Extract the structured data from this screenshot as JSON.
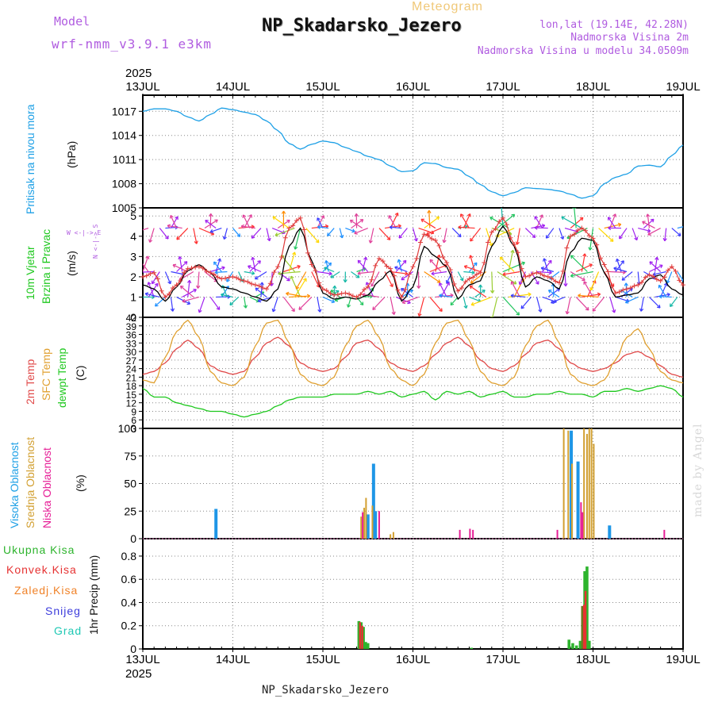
{
  "header": {
    "model_label": "Model",
    "model_value": "wrf-nmm_v3.9.1  e3km",
    "subtitle": "Meteogram",
    "title": "NP_Skadarsko_Jezero",
    "lonlat": "lon,lat (19.14E, 42.28N)",
    "elevation": "Nadmorska Visina 2m",
    "model_elevation": "Nadmorska Visina u modelu 34.0509m"
  },
  "footer_title": "NP_Skadarsko_Jezero",
  "watermark": "made by Angel",
  "time_axis": {
    "year": "2025",
    "labels": [
      "13JUL",
      "14JUL",
      "15JUL",
      "16JUL",
      "17JUL",
      "18JUL",
      "19JUL"
    ]
  },
  "colors": {
    "pressure": "#1ea0e6",
    "wind_speed": "#000000",
    "wind_gust": "#e03c3c",
    "temp2m": "#e04848",
    "sfc_temp": "#e0a030",
    "dewpoint": "#1ec81e",
    "cloud_high": "#1e96e6",
    "cloud_mid": "#d2a032",
    "cloud_low": "#e61e96",
    "precip_total": "#2db42d",
    "precip_conv": "#e63232",
    "precip_large": "#f08228",
    "snow": "#3c3cdc",
    "hail": "#1ec8b4"
  },
  "panel_labels": {
    "pressure": {
      "title": "Pritisak na nivou mora",
      "unit": "(hPa)"
    },
    "wind": {
      "title1": "10m Vjetar",
      "title2": "Brzina i Pravac",
      "unit": "(m/s)",
      "compass_ns": "N <-|-> S",
      "compass_we": "W <-|-> E"
    },
    "temp": {
      "title1": "2m Temp",
      "title2": "SFC Temp",
      "title3": "dewpt Temp",
      "unit": "(C)"
    },
    "cloud": {
      "title1": "Visoka Oblacnost",
      "title2": "Srednja Oblacnost",
      "title3": "Niska Oblacnost",
      "unit": "(%)"
    },
    "precip": {
      "legend": [
        "Ukupna Kisa",
        "Konvek.Kisa",
        "Zaledj.Kisa",
        "Snijeg",
        "Grad"
      ],
      "unit": "1hr Precip (mm)"
    }
  },
  "chart_data": [
    {
      "type": "line",
      "title": "Pritisak na nivou mora",
      "ylabel": "(hPa)",
      "ylim": [
        1005,
        1019
      ],
      "yticks": [
        1005,
        1008,
        1011,
        1014,
        1017
      ],
      "xlim": [
        0,
        144
      ],
      "series": [
        {
          "name": "pressure",
          "x": [
            0,
            3,
            6,
            9,
            12,
            15,
            18,
            21,
            24,
            27,
            30,
            33,
            36,
            39,
            42,
            45,
            48,
            51,
            54,
            57,
            60,
            63,
            66,
            69,
            72,
            75,
            78,
            81,
            84,
            87,
            90,
            93,
            96,
            99,
            102,
            105,
            108,
            111,
            114,
            117,
            120,
            123,
            126,
            129,
            132,
            135,
            138,
            141,
            144
          ],
          "values": [
            1017.0,
            1017.3,
            1017.3,
            1017.0,
            1016.3,
            1015.8,
            1016.6,
            1017.4,
            1017.2,
            1016.9,
            1016.6,
            1015.8,
            1014.6,
            1013.0,
            1012.3,
            1012.9,
            1013.3,
            1013.1,
            1012.5,
            1012.0,
            1011.4,
            1011.0,
            1010.2,
            1009.5,
            1009.6,
            1010.6,
            1010.5,
            1010.0,
            1009.8,
            1008.9,
            1007.9,
            1007.0,
            1006.5,
            1006.9,
            1007.5,
            1007.4,
            1007.3,
            1007.1,
            1006.7,
            1006.2,
            1006.5,
            1008.0,
            1008.8,
            1009.2,
            1010.2,
            1010.3,
            1010.1,
            1011.5,
            1012.8
          ]
        }
      ]
    },
    {
      "type": "line",
      "title": "10m Vjetar Brzina i Pravac",
      "ylabel": "(m/s)",
      "ylim": [
        0,
        5.4
      ],
      "yticks": [
        0,
        1,
        2,
        3,
        4,
        5
      ],
      "xlim": [
        0,
        144
      ],
      "series": [
        {
          "name": "wind_speed",
          "x": [
            0,
            3,
            6,
            9,
            12,
            15,
            18,
            21,
            24,
            27,
            30,
            33,
            36,
            39,
            42,
            45,
            48,
            51,
            54,
            57,
            60,
            63,
            66,
            69,
            72,
            75,
            78,
            81,
            84,
            87,
            90,
            93,
            96,
            99,
            102,
            105,
            108,
            111,
            114,
            117,
            120,
            123,
            126,
            129,
            132,
            135,
            138,
            141,
            144
          ],
          "values": [
            1.6,
            1.4,
            0.8,
            1.5,
            2.3,
            2.6,
            2.2,
            1.5,
            1.4,
            1.2,
            1.0,
            0.8,
            1.4,
            3.5,
            4.4,
            2.8,
            1.2,
            0.9,
            1.0,
            0.9,
            1.1,
            1.8,
            2.3,
            0.8,
            1.5,
            3.5,
            3.0,
            2.5,
            0.9,
            1.6,
            1.8,
            3.5,
            4.5,
            3.5,
            1.5,
            2.0,
            1.8,
            1.4,
            3.2,
            3.9,
            3.8,
            2.2,
            1.0,
            1.1,
            1.2,
            1.9,
            2.1,
            1.4,
            1.1
          ]
        },
        {
          "name": "wind_gust",
          "x": [
            0,
            3,
            6,
            9,
            12,
            15,
            18,
            21,
            24,
            27,
            30,
            33,
            36,
            39,
            42,
            45,
            48,
            51,
            54,
            57,
            60,
            63,
            66,
            69,
            72,
            75,
            78,
            81,
            84,
            87,
            90,
            93,
            96,
            99,
            102,
            105,
            108,
            111,
            114,
            117,
            120,
            123,
            126,
            129,
            132,
            135,
            138,
            141,
            144
          ],
          "values": [
            2.0,
            2.2,
            1.0,
            1.6,
            2.4,
            2.5,
            2.2,
            1.9,
            2.0,
            1.8,
            1.6,
            1.4,
            2.5,
            4.4,
            4.9,
            2.6,
            1.4,
            1.1,
            1.2,
            1.0,
            1.5,
            2.9,
            2.4,
            1.0,
            2.5,
            4.1,
            3.8,
            2.7,
            1.3,
            1.9,
            2.2,
            4.2,
            4.9,
            3.6,
            2.0,
            2.2,
            2.0,
            1.7,
            4.0,
            4.4,
            3.9,
            2.6,
            1.2,
            1.4,
            1.6,
            2.1,
            1.8,
            2.5,
            1.6
          ]
        }
      ]
    },
    {
      "type": "line",
      "title": "2m Temp / SFC Temp / dewpt Temp",
      "ylabel": "(C)",
      "ylim": [
        3,
        42
      ],
      "yticks": [
        3,
        6,
        9,
        12,
        15,
        18,
        21,
        24,
        27,
        30,
        33,
        36,
        39,
        42
      ],
      "xlim": [
        0,
        144
      ],
      "series": [
        {
          "name": "temp_2m",
          "x": [
            0,
            3,
            6,
            9,
            12,
            15,
            18,
            21,
            24,
            27,
            30,
            33,
            36,
            39,
            42,
            45,
            48,
            51,
            54,
            57,
            60,
            63,
            66,
            69,
            72,
            75,
            78,
            81,
            84,
            87,
            90,
            93,
            96,
            99,
            102,
            105,
            108,
            111,
            114,
            117,
            120,
            123,
            126,
            129,
            132,
            135,
            138,
            141,
            144
          ],
          "values": [
            22,
            23,
            26,
            31,
            34,
            31,
            25,
            23,
            22,
            23,
            28,
            33,
            35,
            32,
            26,
            24,
            23,
            24,
            28,
            33,
            34,
            31,
            26,
            24,
            23,
            25,
            29,
            33,
            35,
            32,
            27,
            24,
            23,
            25,
            29,
            33,
            34,
            31,
            26,
            24,
            23,
            24,
            26,
            29,
            30,
            28,
            25,
            22,
            21
          ]
        },
        {
          "name": "sfc_temp",
          "x": [
            0,
            3,
            6,
            9,
            12,
            15,
            18,
            21,
            24,
            27,
            30,
            33,
            36,
            39,
            42,
            45,
            48,
            51,
            54,
            57,
            60,
            63,
            66,
            69,
            72,
            75,
            78,
            81,
            84,
            87,
            90,
            93,
            96,
            99,
            102,
            105,
            108,
            111,
            114,
            117,
            120,
            123,
            126,
            129,
            132,
            135,
            138,
            141,
            144
          ],
          "values": [
            20,
            19,
            28,
            37,
            41,
            35,
            23,
            19,
            18,
            21,
            32,
            40,
            41,
            33,
            22,
            19,
            18,
            21,
            32,
            39,
            41,
            35,
            24,
            20,
            18,
            22,
            33,
            40,
            41,
            34,
            23,
            19,
            18,
            21,
            32,
            39,
            41,
            33,
            22,
            19,
            18,
            20,
            27,
            35,
            38,
            31,
            23,
            20,
            19
          ]
        },
        {
          "name": "dewpoint",
          "x": [
            0,
            3,
            6,
            9,
            12,
            15,
            18,
            21,
            24,
            27,
            30,
            33,
            36,
            39,
            42,
            45,
            48,
            51,
            54,
            57,
            60,
            63,
            66,
            69,
            72,
            75,
            78,
            81,
            84,
            87,
            90,
            93,
            96,
            99,
            102,
            105,
            108,
            111,
            114,
            117,
            120,
            123,
            126,
            129,
            132,
            135,
            138,
            141,
            144
          ],
          "values": [
            17,
            14,
            14,
            12,
            11,
            10,
            9,
            9,
            8,
            7,
            8,
            9,
            11,
            13,
            14,
            14,
            14,
            15,
            15,
            15,
            16,
            15,
            16,
            14,
            15,
            16,
            13,
            16,
            15,
            16,
            14,
            15,
            16,
            14,
            14,
            15,
            15,
            16,
            15,
            15,
            14,
            16,
            16,
            17,
            16,
            17,
            18,
            17,
            14
          ]
        }
      ]
    },
    {
      "type": "bar",
      "title": "Oblacnost",
      "ylabel": "(%)",
      "ylim": [
        0,
        100
      ],
      "yticks": [
        0,
        25,
        50,
        75,
        100
      ],
      "xlim": [
        0,
        144
      ],
      "series": [
        {
          "name": "high",
          "x": [
            19.5,
            60,
            61.5,
            62,
            114.2,
            116,
            124.4
          ],
          "values": [
            27,
            22,
            68,
            25,
            98,
            70,
            12
          ]
        },
        {
          "name": "mid",
          "x": [
            58.2,
            59,
            59.5,
            61.2,
            66,
            66.8,
            112.2,
            113.4,
            114.4,
            117.6,
            118.4,
            119.0,
            119.6,
            120.2
          ],
          "values": [
            20,
            28,
            37,
            30,
            4,
            6,
            100,
            98,
            68,
            100,
            95,
            100,
            100,
            86
          ]
        },
        {
          "name": "low",
          "x": [
            58.6,
            63,
            84.5,
            87.2,
            88.0,
            110.5,
            116.8,
            117.2,
            139.0
          ],
          "values": [
            24,
            25,
            8,
            9,
            8,
            8,
            33,
            24,
            8
          ]
        }
      ]
    },
    {
      "type": "bar",
      "title": "1hr Precip",
      "ylabel": "1hr Precip (mm)",
      "ylim": [
        0,
        0.95
      ],
      "yticks": [
        0,
        0.2,
        0.4,
        0.6,
        0.8
      ],
      "xlim": [
        0,
        144
      ],
      "series": [
        {
          "name": "total",
          "x": [
            57.6,
            58.2,
            58.8,
            59.4,
            60.0,
            87.6,
            113.6,
            114.6,
            115.6,
            116.6,
            117.2,
            117.8,
            118.4,
            119.0
          ],
          "values": [
            0.24,
            0.23,
            0.19,
            0.06,
            0.05,
            0.01,
            0.08,
            0.05,
            0.03,
            0.07,
            0.37,
            0.67,
            0.71,
            0.07
          ]
        },
        {
          "name": "convective",
          "x": [
            57.9,
            58.5,
            117.6,
            118.0
          ],
          "values": [
            0.23,
            0.2,
            0.38,
            0.5
          ]
        }
      ]
    }
  ]
}
